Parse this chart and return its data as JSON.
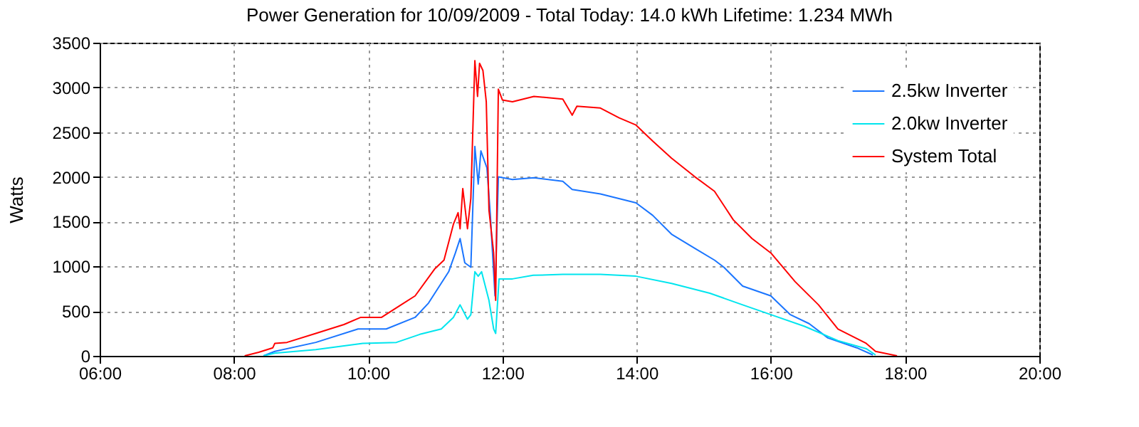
{
  "chart_data": {
    "type": "line",
    "title": "Power Generation for 10/09/2009 - Total Today: 14.0 kWh   Lifetime: 1.234 MWh",
    "ylabel": "Watts",
    "xlim": [
      6,
      20
    ],
    "xticks": [
      {
        "value": 6,
        "label": "06:00"
      },
      {
        "value": 8,
        "label": "08:00"
      },
      {
        "value": 10,
        "label": "10:00"
      },
      {
        "value": 12,
        "label": "12:00"
      },
      {
        "value": 14,
        "label": "14:00"
      },
      {
        "value": 16,
        "label": "16:00"
      },
      {
        "value": 18,
        "label": "18:00"
      },
      {
        "value": 20,
        "label": "20:00"
      }
    ],
    "ylim": [
      0,
      3500
    ],
    "yticks": [
      0,
      500,
      1000,
      1500,
      2000,
      2500,
      3000,
      3500
    ],
    "grid": true,
    "legend": "top right",
    "series": [
      {
        "name": "2.5kw Inverter",
        "color": "#1a75ff",
        "x": [
          8.44,
          8.61,
          9.22,
          9.85,
          10.27,
          10.7,
          10.9,
          11.2,
          11.3,
          11.37,
          11.44,
          11.53,
          11.59,
          11.64,
          11.68,
          11.77,
          11.82,
          11.89,
          11.94,
          12.15,
          12.47,
          12.9,
          13.04,
          13.46,
          13.99,
          14.24,
          14.52,
          14.87,
          15.16,
          15.3,
          15.58,
          16.0,
          16.29,
          16.57,
          16.85,
          17.28,
          17.52
        ],
        "values": [
          0,
          50,
          150,
          300,
          300,
          430,
          590,
          940,
          1150,
          1310,
          1040,
          990,
          2340,
          1920,
          2290,
          2100,
          1580,
          670,
          2000,
          1970,
          1990,
          1950,
          1860,
          1810,
          1710,
          1570,
          1360,
          1200,
          1070,
          990,
          780,
          670,
          460,
          360,
          200,
          90,
          10
        ]
      },
      {
        "name": "2.0kw Inverter",
        "color": "#00e5ee",
        "x": [
          8.44,
          8.61,
          9.22,
          9.92,
          10.42,
          10.77,
          11.09,
          11.27,
          11.37,
          11.48,
          11.53,
          11.59,
          11.64,
          11.69,
          11.8,
          11.87,
          11.9,
          11.95,
          12.15,
          12.46,
          12.9,
          13.46,
          13.99,
          14.52,
          15.09,
          15.58,
          16.0,
          16.5,
          17.0,
          17.42,
          17.56
        ],
        "values": [
          0,
          30,
          70,
          140,
          150,
          240,
          300,
          430,
          570,
          410,
          460,
          940,
          890,
          940,
          620,
          300,
          250,
          860,
          860,
          900,
          910,
          910,
          890,
          810,
          700,
          570,
          460,
          330,
          170,
          80,
          10
        ]
      },
      {
        "name": "System Total",
        "color": "#ff0000",
        "x": [
          8.16,
          8.37,
          8.58,
          8.61,
          8.79,
          9.22,
          9.64,
          9.89,
          10.2,
          10.49,
          10.7,
          10.99,
          11.13,
          11.27,
          11.34,
          11.37,
          11.41,
          11.48,
          11.53,
          11.59,
          11.63,
          11.66,
          11.71,
          11.76,
          11.8,
          11.87,
          11.9,
          11.94,
          12.0,
          12.15,
          12.47,
          12.9,
          13.04,
          13.11,
          13.46,
          13.74,
          13.99,
          14.24,
          14.52,
          14.87,
          15.16,
          15.44,
          15.72,
          16.0,
          16.36,
          16.71,
          17.0,
          17.42,
          17.56,
          17.88
        ],
        "values": [
          0,
          40,
          90,
          140,
          150,
          250,
          350,
          430,
          430,
          570,
          670,
          970,
          1070,
          1470,
          1600,
          1420,
          1870,
          1420,
          1760,
          3300,
          2900,
          3270,
          3190,
          2840,
          1630,
          1150,
          620,
          2980,
          2860,
          2840,
          2900,
          2870,
          2690,
          2790,
          2770,
          2660,
          2580,
          2400,
          2210,
          2000,
          1840,
          1520,
          1310,
          1150,
          830,
          570,
          300,
          140,
          50,
          0
        ]
      }
    ]
  }
}
